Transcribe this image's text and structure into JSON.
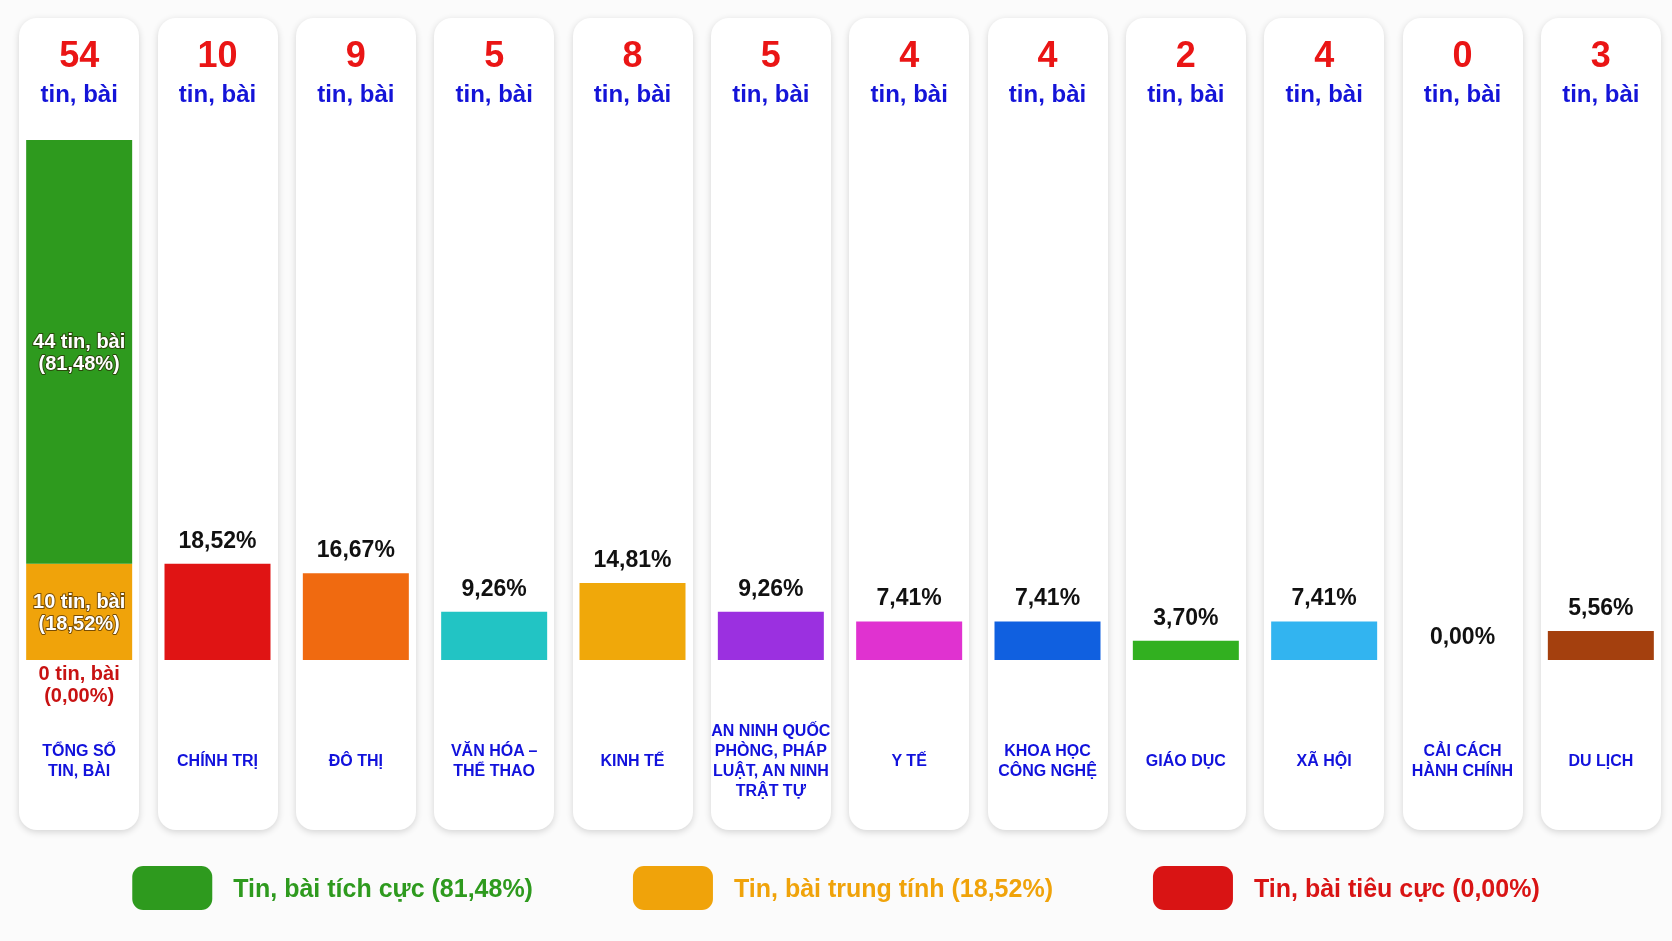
{
  "chart_data": {
    "type": "bar",
    "stacked": true,
    "categories": [
      "TỔNG SỐ TIN, BÀI",
      "CHÍNH TRỊ",
      "ĐÔ THỊ",
      "VĂN HÓA – THỂ THAO",
      "KINH TẾ",
      "AN NINH QUỐC PHÒNG, PHÁP LUẬT, AN NINH TRẬT TỰ",
      "Y TẾ",
      "KHOA HỌC CÔNG NGHỆ",
      "GIÁO DỤC",
      "XÃ HỘI",
      "CẢI CÁCH HÀNH CHÍNH",
      "DU LỊCH"
    ],
    "series": [
      {
        "name": "Tin, bài tiêu cực (0,00%)",
        "color": "#d91414",
        "values": [
          0,
          null,
          null,
          null,
          null,
          null,
          null,
          null,
          null,
          null,
          null,
          null
        ]
      },
      {
        "name": "Tin, bài trung tính (18,52%)",
        "color": "#f0a30a",
        "values": [
          18.52,
          null,
          null,
          null,
          null,
          null,
          null,
          null,
          null,
          null,
          null,
          null
        ],
        "value_labels": [
          "10 tin, bài (18,52%)",
          null,
          null,
          null,
          null,
          null,
          null,
          null,
          null,
          null,
          null,
          null
        ]
      },
      {
        "name": "Tin, bài tích cực (81,48%)",
        "color": "#2e9a1e",
        "values": [
          81.48,
          null,
          null,
          null,
          null,
          null,
          null,
          null,
          null,
          null,
          null,
          null
        ],
        "value_labels": [
          "44 tin, bài (81,48%)",
          null,
          null,
          null,
          null,
          null,
          null,
          null,
          null,
          null,
          null,
          null
        ]
      },
      {
        "colors": [
          null,
          "#e01414",
          "#f06a10",
          "#22c4c4",
          "#f0a80a",
          "#9b30e0",
          "#e032d0",
          "#1060e0",
          "#32b020",
          "#32b4f0",
          "#f04070",
          "#a4400e"
        ],
        "values": [
          null,
          18.52,
          16.67,
          9.26,
          14.81,
          9.26,
          7.41,
          7.41,
          3.7,
          7.41,
          0,
          5.56
        ],
        "value_labels": [
          null,
          "18,52%",
          "16,67%",
          "9,26%",
          "14,81%",
          "9,26%",
          "7,41%",
          "7,41%",
          "3,70%",
          "7,41%",
          "0,00%",
          "5,56%"
        ]
      }
    ],
    "annotations": [
      "54 tin, bài",
      "10 tin, bài",
      "9 tin, bài",
      "5 tin, bài",
      "8 tin, bài",
      "5 tin, bài",
      "4 tin, bài",
      "4 tin, bài",
      "2 tin, bài",
      "4 tin, bài",
      "0 tin, bài",
      "3 tin, bài",
      {
        "text": "0 tin, bài (0,00%)",
        "x": "TỔNG SỐ TIN, BÀI",
        "y": 0
      }
    ],
    "legend": "bottom"
  }
}
